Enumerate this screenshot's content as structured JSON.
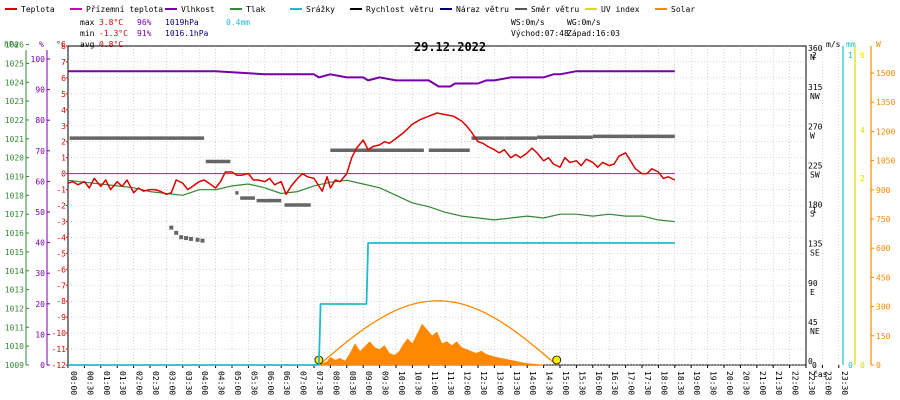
{
  "chart_data": {
    "type": "line",
    "date": "29.12.2022",
    "legend": [
      {
        "name": "Teplota",
        "color": "#dd0000"
      },
      {
        "name": "Přízemní teplota",
        "color": "#cc00cc"
      },
      {
        "name": "Vlhkost",
        "color": "#7700aa"
      },
      {
        "name": "Tlak",
        "color": "#338833"
      },
      {
        "name": "Srážky",
        "color": "#22bbcc"
      },
      {
        "name": "Rychlost větru",
        "color": "#000000"
      },
      {
        "name": "Náraz větru",
        "color": "#000077"
      },
      {
        "name": "Směr větru",
        "color": "#555555"
      },
      {
        "name": "UV index",
        "color": "#dddd00"
      },
      {
        "name": "Solar",
        "color": "#ff8800"
      }
    ],
    "stats": {
      "max": {
        "label": "max",
        "temp": "3.8°C",
        "hum": "96%",
        "press": "1019hPa",
        "rain": "0.4mm"
      },
      "min": {
        "label": "min",
        "temp": "-1.3°C",
        "hum": "91%",
        "press": "1016.1hPa"
      },
      "avg": {
        "label": "avg",
        "temp": "0.8°C"
      }
    },
    "wind_info": {
      "ws": "WS:0m/s",
      "wg": "WG:0m/s",
      "sunrise": "Východ:07:48",
      "sunset": "Západ:16:03"
    },
    "axes": {
      "hpa": {
        "label": "hPa",
        "ticks": [
          1009,
          1010,
          1011,
          1012,
          1013,
          1014,
          1015,
          1016,
          1017,
          1018,
          1019,
          1020,
          1021,
          1022,
          1023,
          1024,
          1025,
          1026
        ]
      },
      "percent": {
        "label": "%",
        "ticks": [
          0,
          10,
          20,
          30,
          40,
          50,
          60,
          70,
          80,
          90,
          100
        ]
      },
      "celsius": {
        "label": "°C",
        "range": [
          -12,
          8
        ]
      },
      "ms": {
        "label": "m/s",
        "ticks": [
          0,
          1,
          2
        ]
      },
      "direction": {
        "ticks": [
          {
            "deg": "0",
            "dir": ""
          },
          {
            "deg": "45",
            "dir": "NE"
          },
          {
            "deg": "90",
            "dir": "E"
          },
          {
            "deg": "135",
            "dir": "SE"
          },
          {
            "deg": "180",
            "dir": "S"
          },
          {
            "deg": "225",
            "dir": "SW"
          },
          {
            "deg": "270",
            "dir": "W"
          },
          {
            "deg": "315",
            "dir": "NW"
          },
          {
            "deg": "360",
            "dir": "N"
          }
        ]
      },
      "mm": {
        "label": "mm",
        "ticks": [
          0,
          1
        ]
      },
      "uv": {
        "ticks": [
          0,
          2,
          4,
          6
        ]
      },
      "w": {
        "label": "W",
        "ticks": [
          0,
          150,
          300,
          450,
          600,
          750,
          900,
          1050,
          1200,
          1350,
          1500
        ]
      },
      "time_label": "čas"
    },
    "x_ticks": [
      "00:00",
      "00:30",
      "01:00",
      "01:30",
      "02:00",
      "02:30",
      "03:00",
      "03:30",
      "04:00",
      "04:30",
      "05:00",
      "05:30",
      "06:00",
      "06:30",
      "07:00",
      "07:30",
      "08:00",
      "08:30",
      "09:00",
      "09:30",
      "10:00",
      "10:30",
      "11:00",
      "11:30",
      "12:00",
      "12:30",
      "13:00",
      "13:30",
      "14:00",
      "14:30",
      "15:00",
      "15:30",
      "16:00",
      "16:30",
      "17:00",
      "17:30",
      "18:00",
      "18:30",
      "19:00",
      "19:30",
      "20:00",
      "20:30",
      "21:00",
      "21:30",
      "22:00",
      "22:30",
      "23:00",
      "23:30"
    ],
    "series": {
      "temperature": [
        [
          0,
          -0.6
        ],
        [
          0.3,
          -0.5
        ],
        [
          0.6,
          -0.7
        ],
        [
          1,
          -0.5
        ],
        [
          1.3,
          -0.9
        ],
        [
          1.6,
          -0.3
        ],
        [
          2,
          -0.8
        ],
        [
          2.3,
          -0.4
        ],
        [
          2.6,
          -1.0
        ],
        [
          3,
          -0.5
        ],
        [
          3.3,
          -0.8
        ],
        [
          3.6,
          -0.4
        ],
        [
          4,
          -1.2
        ],
        [
          4.3,
          -0.9
        ],
        [
          4.6,
          -1.1
        ],
        [
          5,
          -1.0
        ],
        [
          5.3,
          -1.0
        ],
        [
          5.6,
          -1.1
        ],
        [
          6,
          -1.3
        ],
        [
          6.3,
          -1.2
        ],
        [
          6.6,
          -0.4
        ],
        [
          7,
          -0.6
        ],
        [
          7.3,
          -1.0
        ],
        [
          7.6,
          -0.8
        ],
        [
          8,
          -0.5
        ],
        [
          8.3,
          -0.4
        ],
        [
          8.6,
          -0.6
        ],
        [
          9,
          -0.9
        ],
        [
          9.3,
          -0.5
        ],
        [
          9.6,
          0.1
        ],
        [
          10,
          0.1
        ],
        [
          10.3,
          -0.1
        ],
        [
          10.6,
          -0.1
        ],
        [
          11,
          0.0
        ],
        [
          11.3,
          -0.4
        ],
        [
          11.6,
          -0.4
        ],
        [
          12,
          -0.5
        ],
        [
          12.3,
          -0.3
        ],
        [
          12.6,
          -0.7
        ],
        [
          13,
          -0.5
        ],
        [
          13.3,
          -1.3
        ],
        [
          13.6,
          -0.8
        ],
        [
          14,
          -0.3
        ],
        [
          14.3,
          0.0
        ],
        [
          14.6,
          -0.2
        ],
        [
          15,
          -0.3
        ],
        [
          15.5,
          -1.1
        ],
        [
          15.8,
          -0.2
        ],
        [
          16,
          -0.9
        ],
        [
          16.3,
          -0.4
        ],
        [
          16.6,
          -0.5
        ],
        [
          17,
          0.0
        ],
        [
          17.3,
          1.0
        ],
        [
          17.6,
          1.6
        ],
        [
          18,
          2.1
        ],
        [
          18.3,
          1.5
        ],
        [
          18.6,
          1.7
        ],
        [
          19,
          1.8
        ],
        [
          19.3,
          2.0
        ],
        [
          19.6,
          1.9
        ],
        [
          20,
          2.2
        ],
        [
          20.5,
          2.6
        ],
        [
          21,
          3.1
        ],
        [
          21.5,
          3.4
        ],
        [
          22,
          3.6
        ],
        [
          22.5,
          3.8
        ],
        [
          23,
          3.7
        ],
        [
          23.5,
          3.6
        ],
        [
          24,
          3.3
        ],
        [
          24.3,
          3.0
        ],
        [
          24.6,
          2.6
        ],
        [
          25,
          2.0
        ],
        [
          25.3,
          1.9
        ],
        [
          25.6,
          1.7
        ],
        [
          26,
          1.5
        ],
        [
          26.3,
          1.3
        ],
        [
          26.6,
          1.5
        ],
        [
          27,
          1.0
        ],
        [
          27.3,
          1.2
        ],
        [
          27.6,
          1.0
        ],
        [
          28,
          1.3
        ],
        [
          28.3,
          1.6
        ],
        [
          28.6,
          1.3
        ],
        [
          29,
          0.8
        ],
        [
          29.3,
          1.0
        ],
        [
          29.6,
          0.6
        ],
        [
          30,
          0.4
        ],
        [
          30.3,
          1.0
        ],
        [
          30.6,
          0.7
        ],
        [
          31,
          0.8
        ],
        [
          31.3,
          0.5
        ],
        [
          31.6,
          0.9
        ],
        [
          32,
          0.7
        ],
        [
          32.3,
          0.4
        ],
        [
          32.6,
          0.7
        ],
        [
          33,
          0.5
        ],
        [
          33.3,
          0.6
        ],
        [
          33.6,
          1.1
        ],
        [
          34,
          1.3
        ],
        [
          34.3,
          0.8
        ],
        [
          34.6,
          0.3
        ],
        [
          35,
          0.0
        ],
        [
          35.3,
          0.0
        ],
        [
          35.6,
          0.3
        ],
        [
          36,
          0.1
        ],
        [
          36.3,
          -0.3
        ],
        [
          36.6,
          -0.2
        ],
        [
          37,
          -0.4
        ]
      ],
      "ground_temperature": [
        [
          0,
          0.0
        ],
        [
          37,
          0.0
        ]
      ],
      "humidity": [
        [
          0,
          96
        ],
        [
          3,
          96
        ],
        [
          6,
          96
        ],
        [
          9,
          96
        ],
        [
          12,
          95
        ],
        [
          15,
          95
        ],
        [
          15.3,
          94
        ],
        [
          16,
          95
        ],
        [
          17,
          94
        ],
        [
          18,
          94
        ],
        [
          18.3,
          93
        ],
        [
          19,
          94
        ],
        [
          20,
          93
        ],
        [
          21,
          93
        ],
        [
          21.5,
          93
        ],
        [
          22,
          93
        ],
        [
          22.6,
          91
        ],
        [
          23.3,
          91
        ],
        [
          23.6,
          92
        ],
        [
          25,
          92
        ],
        [
          25.5,
          93
        ],
        [
          26,
          93
        ],
        [
          27,
          94
        ],
        [
          28,
          94
        ],
        [
          29,
          94
        ],
        [
          29.6,
          95
        ],
        [
          30,
          95
        ],
        [
          31,
          96
        ],
        [
          32,
          96
        ],
        [
          33,
          96
        ],
        [
          34,
          96
        ],
        [
          35,
          96
        ],
        [
          36,
          96
        ],
        [
          37,
          96
        ]
      ],
      "pressure": [
        [
          0,
          1018.8
        ],
        [
          1,
          1018.7
        ],
        [
          2,
          1018.6
        ],
        [
          3,
          1018.5
        ],
        [
          4,
          1018.4
        ],
        [
          5,
          1018.2
        ],
        [
          6,
          1018.1
        ],
        [
          7,
          1018.0
        ],
        [
          8,
          1018.3
        ],
        [
          9,
          1018.3
        ],
        [
          10,
          1018.5
        ],
        [
          11,
          1018.6
        ],
        [
          12,
          1018.4
        ],
        [
          13,
          1018.1
        ],
        [
          14,
          1018.2
        ],
        [
          15,
          1018.5
        ],
        [
          16,
          1018.7
        ],
        [
          17,
          1018.8
        ],
        [
          18,
          1018.6
        ],
        [
          19,
          1018.4
        ],
        [
          20,
          1018.0
        ],
        [
          21,
          1017.6
        ],
        [
          22,
          1017.4
        ],
        [
          23,
          1017.1
        ],
        [
          24,
          1016.9
        ],
        [
          25,
          1016.8
        ],
        [
          26,
          1016.7
        ],
        [
          27,
          1016.8
        ],
        [
          28,
          1016.9
        ],
        [
          29,
          1016.8
        ],
        [
          30,
          1017.0
        ],
        [
          31,
          1017.0
        ],
        [
          32,
          1016.9
        ],
        [
          33,
          1017.0
        ],
        [
          34,
          1016.9
        ],
        [
          35,
          1016.9
        ],
        [
          36,
          1016.7
        ],
        [
          37,
          1016.6
        ]
      ],
      "rain": [
        [
          0,
          0
        ],
        [
          15.3,
          0
        ],
        [
          15.4,
          0.2
        ],
        [
          18.2,
          0.2
        ],
        [
          18.3,
          0.4
        ],
        [
          37,
          0.4
        ]
      ],
      "wind_direction": [
        [
          0,
          240
        ],
        [
          1,
          261
        ],
        [
          2,
          261
        ],
        [
          3,
          261
        ],
        [
          4,
          261
        ],
        [
          5,
          261
        ],
        [
          6,
          261
        ],
        [
          7,
          261
        ],
        [
          8,
          261
        ],
        [
          8.5,
          236
        ],
        [
          9.5,
          236
        ],
        [
          10.2,
          198
        ],
        [
          10.5,
          192
        ],
        [
          11,
          189
        ],
        [
          11.5,
          189
        ],
        [
          12,
          189
        ],
        [
          12.5,
          184
        ],
        [
          13,
          184
        ],
        [
          14,
          184
        ],
        [
          15,
          184
        ],
        [
          16,
          184
        ],
        [
          16.5,
          247
        ],
        [
          17,
          247
        ],
        [
          18,
          247
        ],
        [
          19,
          247
        ],
        [
          20,
          247
        ],
        [
          21,
          247
        ],
        [
          21.5,
          244
        ],
        [
          22,
          247
        ],
        [
          23,
          247
        ],
        [
          24,
          247
        ],
        [
          25,
          261
        ],
        [
          26,
          261
        ],
        [
          27,
          261
        ],
        [
          28,
          261
        ],
        [
          29,
          261
        ],
        [
          30,
          261
        ],
        [
          31,
          261
        ],
        [
          32,
          261
        ],
        [
          33,
          261
        ],
        [
          34,
          261
        ],
        [
          35,
          261
        ],
        [
          35.5,
          263
        ],
        [
          36,
          263
        ],
        [
          37,
          263
        ]
      ],
      "wind_direction_segments": [
        [
          0.1,
          8.3,
          261
        ],
        [
          8.4,
          9.9,
          234
        ],
        [
          10.2,
          10.4,
          198
        ],
        [
          10.5,
          11.4,
          192
        ],
        [
          11.5,
          13,
          189
        ],
        [
          13.2,
          14.8,
          184
        ],
        [
          16,
          21.7,
          247
        ],
        [
          22,
          22.5,
          247
        ],
        [
          22.5,
          24.5,
          247
        ],
        [
          24.6,
          26.6,
          261
        ],
        [
          26.6,
          28.6,
          261
        ],
        [
          28.6,
          32,
          262
        ],
        [
          32,
          34.4,
          263
        ],
        [
          34.4,
          37,
          263
        ]
      ],
      "solar": [
        [
          15.3,
          0
        ],
        [
          15.5,
          8
        ],
        [
          15.8,
          18
        ],
        [
          16,
          40
        ],
        [
          16.3,
          25
        ],
        [
          16.6,
          35
        ],
        [
          16.9,
          20
        ],
        [
          17.2,
          60
        ],
        [
          17.5,
          110
        ],
        [
          17.8,
          70
        ],
        [
          18.1,
          95
        ],
        [
          18.4,
          120
        ],
        [
          18.7,
          90
        ],
        [
          19,
          80
        ],
        [
          19.3,
          100
        ],
        [
          19.6,
          60
        ],
        [
          19.9,
          50
        ],
        [
          20.2,
          70
        ],
        [
          20.4,
          100
        ],
        [
          20.7,
          135
        ],
        [
          21,
          110
        ],
        [
          21.3,
          160
        ],
        [
          21.6,
          210
        ],
        [
          21.9,
          180
        ],
        [
          22.2,
          150
        ],
        [
          22.5,
          170
        ],
        [
          22.8,
          110
        ],
        [
          23.1,
          120
        ],
        [
          23.4,
          100
        ],
        [
          23.7,
          120
        ],
        [
          24,
          90
        ],
        [
          24.3,
          80
        ],
        [
          24.6,
          70
        ],
        [
          24.9,
          60
        ],
        [
          25.2,
          72
        ],
        [
          25.5,
          55
        ],
        [
          25.8,
          48
        ],
        [
          26.1,
          40
        ],
        [
          26.4,
          35
        ],
        [
          26.7,
          30
        ],
        [
          27,
          24
        ],
        [
          27.3,
          20
        ],
        [
          27.6,
          14
        ],
        [
          27.9,
          10
        ],
        [
          28.2,
          6
        ],
        [
          28.6,
          3
        ],
        [
          29,
          0
        ]
      ],
      "solar_max_curve_peak": 330,
      "sun_markers": [
        15.3,
        29.8
      ]
    }
  }
}
